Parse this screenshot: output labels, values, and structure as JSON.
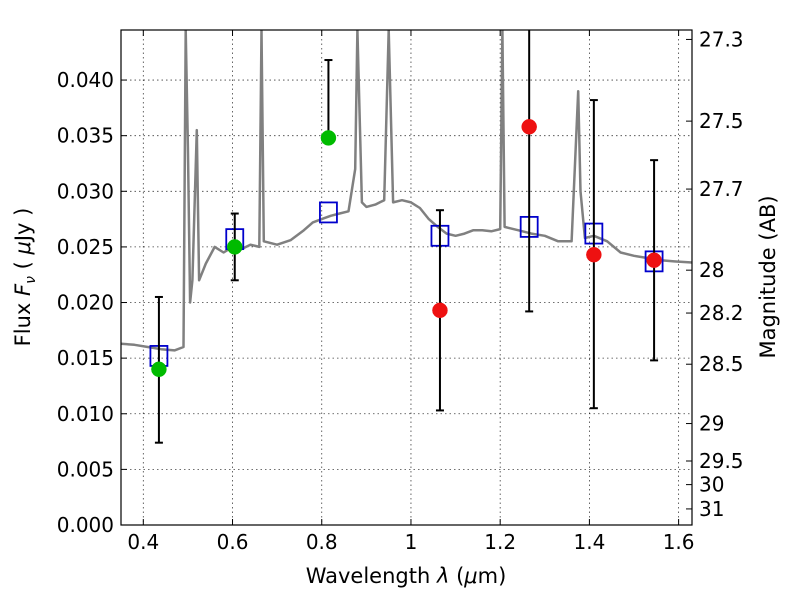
{
  "chart_data": {
    "type": "scatter",
    "xlabel_text": "Wavelength ",
    "xlabel_symbol": "λ",
    "xlabel_unit_open": " (",
    "xlabel_unit_mu": "μ",
    "xlabel_unit_rest": "m)",
    "ylabel_text": "Flux ",
    "ylabel_symbol": "F",
    "ylabel_subscript": "ν",
    "ylabel_unit_open": " ( ",
    "ylabel_unit_mu": "μ",
    "ylabel_unit_rest": "Jy )",
    "y2label": "Magnitude (AB)",
    "xlim": [
      0.35,
      1.63
    ],
    "ylim": [
      0.0,
      0.0445
    ],
    "grid": true,
    "x_ticks": [
      {
        "value": 0.4,
        "label": "0.4"
      },
      {
        "value": 0.6,
        "label": "0.6"
      },
      {
        "value": 0.8,
        "label": "0.8"
      },
      {
        "value": 1.0,
        "label": "1"
      },
      {
        "value": 1.2,
        "label": "1.2"
      },
      {
        "value": 1.4,
        "label": "1.4"
      },
      {
        "value": 1.6,
        "label": "1.6"
      }
    ],
    "y_ticks": [
      {
        "value": 0.0,
        "label": "0.000"
      },
      {
        "value": 0.005,
        "label": "0.005"
      },
      {
        "value": 0.01,
        "label": "0.010"
      },
      {
        "value": 0.015,
        "label": "0.015"
      },
      {
        "value": 0.02,
        "label": "0.020"
      },
      {
        "value": 0.025,
        "label": "0.025"
      },
      {
        "value": 0.03,
        "label": "0.030"
      },
      {
        "value": 0.035,
        "label": "0.035"
      },
      {
        "value": 0.04,
        "label": "0.040"
      }
    ],
    "y2_ticks": [
      {
        "value": 27.3,
        "label": "27.3"
      },
      {
        "value": 27.5,
        "label": "27.5"
      },
      {
        "value": 27.7,
        "label": "27.7"
      },
      {
        "value": 28.0,
        "label": "28"
      },
      {
        "value": 28.2,
        "label": "28.2"
      },
      {
        "value": 28.5,
        "label": "28.5"
      },
      {
        "value": 29.0,
        "label": "29"
      },
      {
        "value": 29.5,
        "label": "29.5"
      },
      {
        "value": 30.0,
        "label": "30"
      },
      {
        "value": 31.0,
        "label": "31"
      }
    ],
    "series": [
      {
        "kind": "line",
        "color": "#808080",
        "points": [
          [
            0.35,
            0.0163
          ],
          [
            0.38,
            0.0162
          ],
          [
            0.41,
            0.016
          ],
          [
            0.44,
            0.0158
          ],
          [
            0.47,
            0.0157
          ],
          [
            0.49,
            0.016
          ],
          [
            0.495,
            0.0445
          ],
          [
            0.5,
            0.034
          ],
          [
            0.505,
            0.02
          ],
          [
            0.51,
            0.022
          ],
          [
            0.52,
            0.0355
          ],
          [
            0.525,
            0.022
          ],
          [
            0.54,
            0.0235
          ],
          [
            0.56,
            0.025
          ],
          [
            0.58,
            0.0245
          ],
          [
            0.6,
            0.025
          ],
          [
            0.62,
            0.0248
          ],
          [
            0.64,
            0.0252
          ],
          [
            0.66,
            0.025
          ],
          [
            0.665,
            0.0445
          ],
          [
            0.67,
            0.0255
          ],
          [
            0.7,
            0.0252
          ],
          [
            0.73,
            0.0256
          ],
          [
            0.76,
            0.0265
          ],
          [
            0.78,
            0.0272
          ],
          [
            0.8,
            0.0275
          ],
          [
            0.82,
            0.0278
          ],
          [
            0.84,
            0.028
          ],
          [
            0.86,
            0.0282
          ],
          [
            0.875,
            0.032
          ],
          [
            0.88,
            0.0445
          ],
          [
            0.89,
            0.029
          ],
          [
            0.9,
            0.0286
          ],
          [
            0.92,
            0.0288
          ],
          [
            0.94,
            0.0292
          ],
          [
            0.95,
            0.0445
          ],
          [
            0.96,
            0.029
          ],
          [
            0.98,
            0.0292
          ],
          [
            1.0,
            0.029
          ],
          [
            1.02,
            0.0285
          ],
          [
            1.04,
            0.0275
          ],
          [
            1.06,
            0.0268
          ],
          [
            1.08,
            0.0262
          ],
          [
            1.1,
            0.026
          ],
          [
            1.12,
            0.0262
          ],
          [
            1.14,
            0.0265
          ],
          [
            1.16,
            0.0265
          ],
          [
            1.18,
            0.0264
          ],
          [
            1.2,
            0.0266
          ],
          [
            1.205,
            0.0445
          ],
          [
            1.21,
            0.0268
          ],
          [
            1.24,
            0.0265
          ],
          [
            1.27,
            0.0262
          ],
          [
            1.3,
            0.026
          ],
          [
            1.33,
            0.0255
          ],
          [
            1.36,
            0.0255
          ],
          [
            1.375,
            0.039
          ],
          [
            1.38,
            0.03
          ],
          [
            1.39,
            0.0258
          ],
          [
            1.41,
            0.026
          ],
          [
            1.44,
            0.0255
          ],
          [
            1.47,
            0.0245
          ],
          [
            1.5,
            0.0242
          ],
          [
            1.53,
            0.024
          ],
          [
            1.56,
            0.0238
          ],
          [
            1.59,
            0.0237
          ],
          [
            1.63,
            0.0236
          ]
        ]
      },
      {
        "kind": "scatter",
        "marker": "square",
        "color": "#0000cc",
        "x": [
          0.435,
          0.605,
          0.815,
          1.065,
          1.265,
          1.41,
          1.545
        ],
        "y": [
          0.0152,
          0.0257,
          0.0281,
          0.026,
          0.0268,
          0.0262,
          0.0237
        ]
      },
      {
        "kind": "scatter",
        "marker": "circle",
        "color": "#00bb00",
        "x": [
          0.435,
          0.605,
          0.815
        ],
        "y": [
          0.014,
          0.025,
          0.0348
        ],
        "err_lo": [
          0.0074,
          0.022,
          0.0348
        ],
        "err_hi": [
          0.0205,
          0.028,
          0.0418
        ]
      },
      {
        "kind": "scatter",
        "marker": "circle",
        "color": "#ee1111",
        "x": [
          1.065,
          1.265,
          1.41,
          1.545
        ],
        "y": [
          0.0193,
          0.0358,
          0.0243,
          0.0238
        ],
        "err_lo": [
          0.0103,
          0.0192,
          0.0105,
          0.0148
        ],
        "err_hi": [
          0.0283,
          0.0445,
          0.0382,
          0.0328
        ]
      }
    ]
  }
}
